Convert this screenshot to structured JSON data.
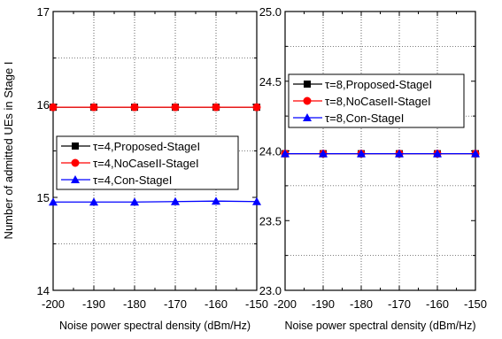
{
  "chart_data": [
    {
      "type": "line",
      "title": "",
      "xlabel": "Noise power spectral density (dBm/Hz)",
      "ylabel": "Number of admitted UEs in Stage I",
      "xlim": [
        -200,
        -150
      ],
      "ylim": [
        14,
        17
      ],
      "x_ticks": [
        "-200",
        "-190",
        "-180",
        "-170",
        "-160",
        "-150"
      ],
      "y_ticks": [
        "14",
        "15",
        "16",
        "17"
      ],
      "grid": "dotted",
      "legend_position": "center-left",
      "x": [
        -200,
        -190,
        -180,
        -170,
        -160,
        -150
      ],
      "series": [
        {
          "name": "τ=4,Proposed-StageI",
          "color": "#000000",
          "marker": "square",
          "values": [
            15.97,
            15.97,
            15.97,
            15.97,
            15.97,
            15.97
          ]
        },
        {
          "name": "τ=4,NoCaseII-StageI",
          "color": "#ff0000",
          "marker": "circle",
          "values": [
            15.97,
            15.97,
            15.97,
            15.97,
            15.97,
            15.97
          ]
        },
        {
          "name": "τ=4,Con-StageI",
          "color": "#0000ff",
          "marker": "triangle",
          "values": [
            14.95,
            14.95,
            14.95,
            14.955,
            14.96,
            14.955
          ]
        }
      ]
    },
    {
      "type": "line",
      "title": "",
      "xlabel": "Noise power spectral density (dBm/Hz)",
      "ylabel": "",
      "xlim": [
        -200,
        -150
      ],
      "ylim": [
        23,
        25
      ],
      "x_ticks": [
        "-200",
        "-190",
        "-180",
        "-170",
        "-160",
        "-150"
      ],
      "y_ticks": [
        "23.0",
        "23.5",
        "24.0",
        "24.5",
        "25.0"
      ],
      "grid": "dotted",
      "legend_position": "top-center",
      "x": [
        -200,
        -190,
        -180,
        -170,
        -160,
        -150
      ],
      "series": [
        {
          "name": "τ=8,Proposed-StageI",
          "color": "#000000",
          "marker": "square",
          "values": [
            23.98,
            23.98,
            23.98,
            23.98,
            23.98,
            23.98
          ]
        },
        {
          "name": "τ=8,NoCaseII-StageI",
          "color": "#ff0000",
          "marker": "circle",
          "values": [
            23.98,
            23.98,
            23.98,
            23.98,
            23.98,
            23.98
          ]
        },
        {
          "name": "τ=8,Con-StageI",
          "color": "#0000ff",
          "marker": "triangle",
          "values": [
            23.98,
            23.98,
            23.98,
            23.98,
            23.98,
            23.98
          ]
        }
      ]
    }
  ]
}
